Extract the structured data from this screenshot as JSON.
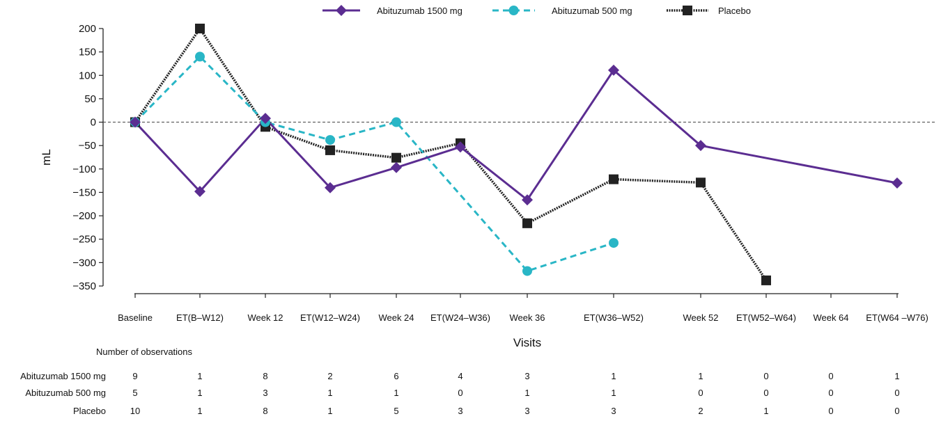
{
  "chart_data": {
    "type": "line",
    "title": "",
    "xlabel": "Visits",
    "ylabel": "mL",
    "ylim": [
      -350,
      200
    ],
    "yticks": [
      200,
      150,
      100,
      50,
      0,
      -50,
      -100,
      -150,
      -200,
      -250,
      -300,
      -350
    ],
    "yticks_text": [
      "200",
      "150",
      "100",
      "50",
      "0",
      "−50",
      "−100",
      "−150",
      "−200",
      "−250",
      "−300",
      "−350"
    ],
    "categories": [
      "Baseline",
      "ET(B–W12)",
      "Week 12",
      "ET(W12–W24)",
      "Week 24",
      "ET(W24–W36)",
      "Week 36",
      "ET(W36–W52)",
      "Week 52",
      "ET(W52–W64)",
      "Week 64",
      "ET(W64 –W76)"
    ],
    "reference_line": 0,
    "legend_position": "top",
    "series": [
      {
        "name": "Abituzumab 1500 mg",
        "color": "#5b2d91",
        "dash": "solid",
        "marker": "diamond",
        "values": [
          0,
          -148,
          8,
          -140,
          -97,
          -53,
          -166,
          111,
          -50,
          null,
          null,
          -130
        ]
      },
      {
        "name": "Abituzumab 500 mg",
        "color": "#29b6c6",
        "dash": "dashed",
        "marker": "circle",
        "values": [
          0,
          140,
          0,
          -38,
          0,
          null,
          -318,
          -258,
          null,
          null,
          null,
          null
        ]
      },
      {
        "name": "Placebo",
        "color": "#222222",
        "dash": "dotted",
        "marker": "square",
        "values": [
          0,
          200,
          -10,
          -60,
          -76,
          -45,
          -216,
          -122,
          -129,
          -338,
          null,
          null
        ]
      }
    ],
    "observations": {
      "heading": "Number of observations",
      "rows": [
        {
          "label": "Abituzumab 1500 mg",
          "counts": [
            "9",
            "1",
            "8",
            "2",
            "6",
            "4",
            "3",
            "1",
            "1",
            "0",
            "0",
            "1"
          ]
        },
        {
          "label": "Abituzumab 500 mg",
          "counts": [
            "5",
            "1",
            "3",
            "1",
            "1",
            "0",
            "1",
            "1",
            "0",
            "0",
            "0",
            "0"
          ]
        },
        {
          "label": "Placebo",
          "counts": [
            "10",
            "1",
            "8",
            "1",
            "5",
            "3",
            "3",
            "3",
            "2",
            "1",
            "0",
            "0"
          ]
        }
      ]
    }
  }
}
